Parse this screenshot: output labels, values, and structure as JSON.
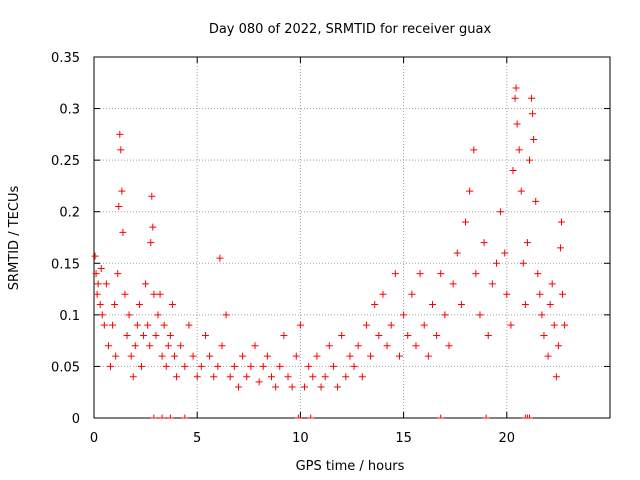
{
  "chart_data": {
    "type": "scatter",
    "title": "Day 080 of 2022, SRMTID for receiver guax",
    "xlabel": "GPS time / hours",
    "ylabel": "SRMTID / TECUs",
    "xlim": [
      0,
      25
    ],
    "ylim": [
      0,
      0.35
    ],
    "xticks": [
      "0",
      "5",
      "10",
      "15",
      "20"
    ],
    "yticks": [
      "0",
      "0.05",
      "0.1",
      "0.15",
      "0.2",
      "0.25",
      "0.3",
      "0.35"
    ],
    "xtick_values": [
      0,
      5,
      10,
      15,
      20
    ],
    "ytick_values": [
      0,
      0.05,
      0.1,
      0.15,
      0.2,
      0.25,
      0.3,
      0.35
    ],
    "grid": true,
    "marker": "plus",
    "color": "#ff0000",
    "series": [
      {
        "name": "SRMTID",
        "points": [
          [
            0.05,
            0.157
          ],
          [
            0.1,
            0.14
          ],
          [
            0.15,
            0.12
          ],
          [
            0.2,
            0.13
          ],
          [
            0.3,
            0.11
          ],
          [
            0.35,
            0.145
          ],
          [
            0.4,
            0.1
          ],
          [
            0.5,
            0.09
          ],
          [
            0.6,
            0.13
          ],
          [
            0.7,
            0.07
          ],
          [
            0.8,
            0.05
          ],
          [
            0.9,
            0.09
          ],
          [
            1.0,
            0.11
          ],
          [
            1.05,
            0.06
          ],
          [
            1.15,
            0.14
          ],
          [
            1.2,
            0.205
          ],
          [
            1.25,
            0.275
          ],
          [
            1.3,
            0.26
          ],
          [
            1.35,
            0.22
          ],
          [
            1.4,
            0.18
          ],
          [
            1.5,
            0.12
          ],
          [
            1.6,
            0.08
          ],
          [
            1.7,
            0.1
          ],
          [
            1.8,
            0.06
          ],
          [
            1.9,
            0.04
          ],
          [
            2.0,
            0.07
          ],
          [
            2.1,
            0.09
          ],
          [
            2.2,
            0.11
          ],
          [
            2.3,
            0.05
          ],
          [
            2.4,
            0.08
          ],
          [
            2.5,
            0.13
          ],
          [
            2.6,
            0.09
          ],
          [
            2.7,
            0.07
          ],
          [
            2.75,
            0.17
          ],
          [
            2.8,
            0.215
          ],
          [
            2.85,
            0.185
          ],
          [
            2.9,
            0.12
          ],
          [
            3.0,
            0.08
          ],
          [
            3.1,
            0.1
          ],
          [
            3.2,
            0.12
          ],
          [
            3.3,
            0.06
          ],
          [
            3.4,
            0.09
          ],
          [
            3.5,
            0.05
          ],
          [
            3.6,
            0.07
          ],
          [
            3.7,
            0.08
          ],
          [
            3.8,
            0.11
          ],
          [
            3.9,
            0.06
          ],
          [
            4.0,
            0.04
          ],
          [
            4.2,
            0.07
          ],
          [
            4.4,
            0.05
          ],
          [
            4.6,
            0.09
          ],
          [
            4.8,
            0.06
          ],
          [
            5.0,
            0.04
          ],
          [
            5.2,
            0.05
          ],
          [
            5.4,
            0.08
          ],
          [
            5.6,
            0.06
          ],
          [
            5.8,
            0.04
          ],
          [
            6.0,
            0.05
          ],
          [
            6.1,
            0.155
          ],
          [
            6.2,
            0.07
          ],
          [
            6.4,
            0.1
          ],
          [
            6.6,
            0.04
          ],
          [
            6.8,
            0.05
          ],
          [
            7.0,
            0.03
          ],
          [
            7.2,
            0.06
          ],
          [
            7.4,
            0.04
          ],
          [
            7.6,
            0.05
          ],
          [
            7.8,
            0.07
          ],
          [
            8.0,
            0.035
          ],
          [
            8.2,
            0.05
          ],
          [
            8.4,
            0.06
          ],
          [
            8.6,
            0.04
          ],
          [
            8.8,
            0.03
          ],
          [
            9.0,
            0.05
          ],
          [
            9.2,
            0.08
          ],
          [
            9.4,
            0.04
          ],
          [
            9.6,
            0.03
          ],
          [
            9.8,
            0.06
          ],
          [
            10.0,
            0.09
          ],
          [
            10.2,
            0.03
          ],
          [
            10.4,
            0.05
          ],
          [
            10.6,
            0.04
          ],
          [
            10.8,
            0.06
          ],
          [
            11.0,
            0.03
          ],
          [
            11.2,
            0.04
          ],
          [
            11.4,
            0.07
          ],
          [
            11.6,
            0.05
          ],
          [
            11.8,
            0.03
          ],
          [
            12.0,
            0.08
          ],
          [
            12.2,
            0.04
          ],
          [
            12.4,
            0.06
          ],
          [
            12.6,
            0.05
          ],
          [
            12.8,
            0.07
          ],
          [
            13.0,
            0.04
          ],
          [
            13.2,
            0.09
          ],
          [
            13.4,
            0.06
          ],
          [
            13.6,
            0.11
          ],
          [
            13.8,
            0.08
          ],
          [
            14.0,
            0.12
          ],
          [
            14.2,
            0.07
          ],
          [
            14.4,
            0.09
          ],
          [
            14.6,
            0.14
          ],
          [
            14.8,
            0.06
          ],
          [
            15.0,
            0.1
          ],
          [
            15.2,
            0.08
          ],
          [
            15.4,
            0.12
          ],
          [
            15.6,
            0.07
          ],
          [
            15.8,
            0.14
          ],
          [
            16.0,
            0.09
          ],
          [
            16.2,
            0.06
          ],
          [
            16.4,
            0.11
          ],
          [
            16.6,
            0.08
          ],
          [
            16.8,
            0.14
          ],
          [
            17.0,
            0.1
          ],
          [
            17.2,
            0.07
          ],
          [
            17.4,
            0.13
          ],
          [
            17.6,
            0.16
          ],
          [
            17.8,
            0.11
          ],
          [
            18.0,
            0.19
          ],
          [
            18.2,
            0.22
          ],
          [
            18.4,
            0.26
          ],
          [
            18.5,
            0.14
          ],
          [
            18.7,
            0.1
          ],
          [
            18.9,
            0.17
          ],
          [
            19.1,
            0.08
          ],
          [
            19.3,
            0.13
          ],
          [
            19.5,
            0.15
          ],
          [
            19.7,
            0.2
          ],
          [
            19.9,
            0.16
          ],
          [
            20.0,
            0.12
          ],
          [
            20.2,
            0.09
          ],
          [
            20.3,
            0.24
          ],
          [
            20.4,
            0.31
          ],
          [
            20.45,
            0.32
          ],
          [
            20.5,
            0.285
          ],
          [
            20.6,
            0.26
          ],
          [
            20.7,
            0.22
          ],
          [
            20.8,
            0.15
          ],
          [
            20.9,
            0.11
          ],
          [
            21.0,
            0.17
          ],
          [
            21.1,
            0.25
          ],
          [
            21.2,
            0.31
          ],
          [
            21.25,
            0.295
          ],
          [
            21.3,
            0.27
          ],
          [
            21.4,
            0.21
          ],
          [
            21.5,
            0.14
          ],
          [
            21.6,
            0.12
          ],
          [
            21.7,
            0.1
          ],
          [
            21.8,
            0.08
          ],
          [
            22.0,
            0.06
          ],
          [
            22.1,
            0.11
          ],
          [
            22.2,
            0.13
          ],
          [
            22.3,
            0.09
          ],
          [
            22.4,
            0.04
          ],
          [
            22.5,
            0.07
          ],
          [
            22.6,
            0.165
          ],
          [
            22.65,
            0.19
          ],
          [
            22.7,
            0.12
          ],
          [
            22.8,
            0.09
          ]
        ]
      }
    ],
    "zero_markers": [
      2.9,
      3.3,
      3.7,
      4.4,
      9.9,
      10.5,
      16.8,
      19.0,
      20.9,
      21.0,
      21.1
    ]
  }
}
